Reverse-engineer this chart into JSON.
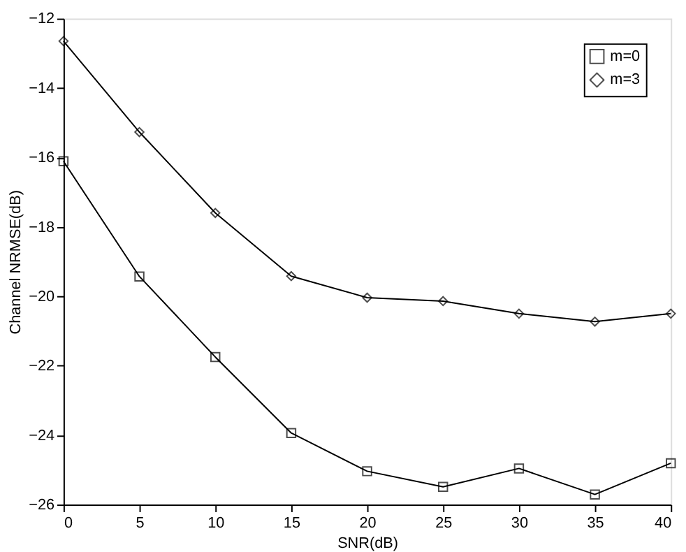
{
  "chart_data": {
    "type": "line",
    "xlabel": "SNR(dB)",
    "ylabel": "Channel NRMSE(dB)",
    "x": [
      0,
      5,
      10,
      15,
      20,
      25,
      30,
      35,
      40
    ],
    "series": [
      {
        "name": "m=0",
        "color": "#000000",
        "marker": "square",
        "values": [
          -16.11,
          -19.43,
          -21.75,
          -23.94,
          -25.04,
          -25.49,
          -24.96,
          -25.71,
          -24.81
        ]
      },
      {
        "name": "m=3",
        "color": "#000000",
        "marker": "diamond",
        "values": [
          -12.65,
          -15.27,
          -17.6,
          -19.42,
          -20.04,
          -20.14,
          -20.5,
          -20.73,
          -20.5
        ]
      }
    ],
    "xlim": [
      0,
      40
    ],
    "xticks": [
      0,
      5,
      10,
      15,
      20,
      25,
      30,
      35,
      40
    ],
    "ylim": [
      -26,
      -12
    ],
    "yticks": [
      -26,
      -24,
      -22,
      -20,
      -18,
      -16,
      -14,
      -12
    ],
    "grid": false,
    "legend": "top right",
    "line_style": "solid"
  }
}
